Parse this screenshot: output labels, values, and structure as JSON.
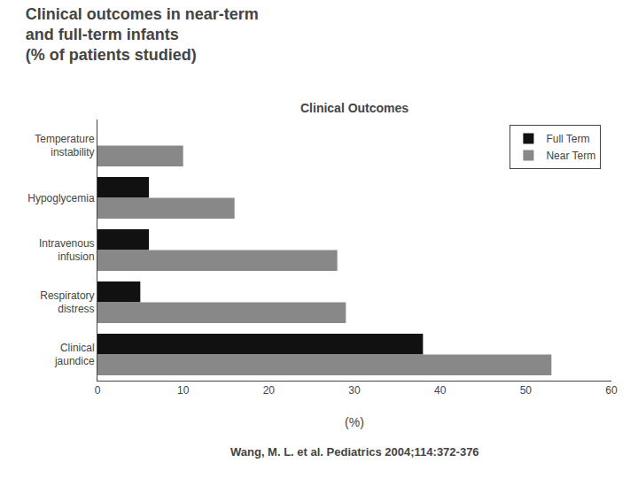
{
  "chart_data": {
    "type": "bar",
    "orientation": "horizontal",
    "title": "Clinical outcomes in near-term\nand full-term infants\n(% of patients studied)",
    "subtitle": "Clinical Outcomes",
    "annotations": [
      "Wang, M. L. et al. Pediatrics 2004;114:372-376"
    ],
    "xlabel": "(%)",
    "categories": [
      "Temperature\ninstability",
      "Hypoglycemia",
      "Intravenous\ninfusion",
      "Respiratory\ndistress",
      "Clinical\njaundice"
    ],
    "series": [
      {
        "name": "Full Term",
        "color": "#111111",
        "values": [
          0,
          6,
          6,
          5,
          38
        ]
      },
      {
        "name": "Near Term",
        "color": "#888888",
        "values": [
          10,
          16,
          28,
          29,
          53
        ]
      }
    ],
    "xlim": [
      0,
      60
    ],
    "xticks": [
      0,
      10,
      20,
      30,
      40,
      50,
      60
    ],
    "grid": false,
    "legend": "upper right"
  }
}
